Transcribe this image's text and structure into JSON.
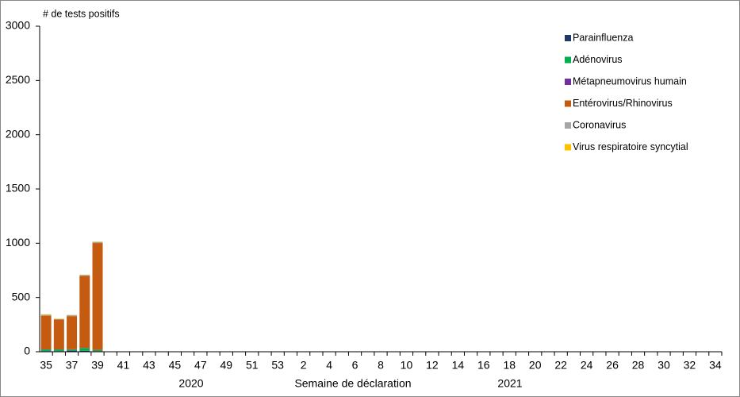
{
  "chart_data": {
    "type": "stacked_bar",
    "y_title": "# de tests positifs",
    "x_title": "Semaine de déclaration",
    "year_labels": [
      "2020",
      "2021"
    ],
    "categories": [
      "35",
      null,
      "37",
      null,
      "39",
      null,
      "41",
      null,
      "43",
      null,
      "45",
      null,
      "47",
      null,
      "49",
      null,
      "51",
      null,
      "53",
      null,
      "2",
      null,
      "4",
      null,
      "6",
      null,
      "8",
      null,
      "10",
      null,
      "12",
      null,
      "14",
      null,
      "16",
      null,
      "18",
      null,
      "20",
      null,
      "22",
      null,
      "24",
      null,
      "26",
      null,
      "28",
      null,
      "30",
      null,
      "32",
      null,
      "34"
    ],
    "ylim": [
      0,
      3000
    ],
    "yticks": [
      0,
      500,
      1000,
      1500,
      2000,
      2500,
      3000
    ],
    "series": [
      {
        "name": "Parainfluenza",
        "color": "#1f3864",
        "values": [
          5,
          5,
          10,
          8,
          5,
          null,
          null,
          null,
          null,
          null,
          null,
          null,
          null,
          null,
          null,
          null,
          null,
          null,
          null,
          null,
          null,
          null,
          null,
          null,
          null,
          null,
          null,
          null,
          null,
          null,
          null,
          null,
          null,
          null,
          null,
          null,
          null,
          null,
          null,
          null,
          null,
          null,
          null,
          null,
          null,
          null,
          null,
          null,
          null,
          null,
          null,
          null,
          null
        ]
      },
      {
        "name": "Adénovirus",
        "color": "#00b050",
        "values": [
          15,
          15,
          10,
          25,
          10,
          null,
          null,
          null,
          null,
          null,
          null,
          null,
          null,
          null,
          null,
          null,
          null,
          null,
          null,
          null,
          null,
          null,
          null,
          null,
          null,
          null,
          null,
          null,
          null,
          null,
          null,
          null,
          null,
          null,
          null,
          null,
          null,
          null,
          null,
          null,
          null,
          null,
          null,
          null,
          null,
          null,
          null,
          null,
          null,
          null,
          null,
          null,
          null
        ]
      },
      {
        "name": "Métapneumovirus humain",
        "color": "#7030a0",
        "values": [
          2,
          2,
          3,
          2,
          2,
          null,
          null,
          null,
          null,
          null,
          null,
          null,
          null,
          null,
          null,
          null,
          null,
          null,
          null,
          null,
          null,
          null,
          null,
          null,
          null,
          null,
          null,
          null,
          null,
          null,
          null,
          null,
          null,
          null,
          null,
          null,
          null,
          null,
          null,
          null,
          null,
          null,
          null,
          null,
          null,
          null,
          null,
          null,
          null,
          null,
          null,
          null,
          null
        ]
      },
      {
        "name": "Entérovirus/Rhinovirus",
        "color": "#c55a11",
        "values": [
          310,
          275,
          305,
          665,
          985,
          null,
          null,
          null,
          null,
          null,
          null,
          null,
          null,
          null,
          null,
          null,
          null,
          null,
          null,
          null,
          null,
          null,
          null,
          null,
          null,
          null,
          null,
          null,
          null,
          null,
          null,
          null,
          null,
          null,
          null,
          null,
          null,
          null,
          null,
          null,
          null,
          null,
          null,
          null,
          null,
          null,
          null,
          null,
          null,
          null,
          null,
          null,
          null
        ]
      },
      {
        "name": "Coronavirus",
        "color": "#a6a6a6",
        "values": [
          8,
          5,
          10,
          8,
          10,
          null,
          null,
          null,
          null,
          null,
          null,
          null,
          null,
          null,
          null,
          null,
          null,
          null,
          null,
          null,
          null,
          null,
          null,
          null,
          null,
          null,
          null,
          null,
          null,
          null,
          null,
          null,
          null,
          null,
          null,
          null,
          null,
          null,
          null,
          null,
          null,
          null,
          null,
          null,
          null,
          null,
          null,
          null,
          null,
          null,
          null,
          null,
          null
        ]
      },
      {
        "name": "Virus respiratoire syncytial",
        "color": "#ffc000",
        "values": [
          5,
          3,
          2,
          2,
          3,
          null,
          null,
          null,
          null,
          null,
          null,
          null,
          null,
          null,
          null,
          null,
          null,
          null,
          null,
          null,
          null,
          null,
          null,
          null,
          null,
          null,
          null,
          null,
          null,
          null,
          null,
          null,
          null,
          null,
          null,
          null,
          null,
          null,
          null,
          null,
          null,
          null,
          null,
          null,
          null,
          null,
          null,
          null,
          null,
          null,
          null,
          null,
          null
        ]
      }
    ]
  }
}
